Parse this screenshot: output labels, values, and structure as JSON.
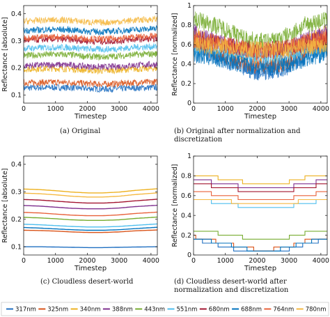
{
  "chart_data": [
    {
      "id": "a",
      "type": "line",
      "caption": "(a) Original",
      "xlabel": "Timestep",
      "ylabel": "Reflectance [absolute]",
      "xlim": [
        0,
        4200
      ],
      "ylim": [
        0.07,
        0.43
      ],
      "xticks": [
        0,
        1000,
        2000,
        3000,
        4000
      ],
      "yticks": [
        0.1,
        0.2,
        0.3,
        0.4
      ],
      "ytick_labels": [
        "0.1",
        "0.2",
        "0.3",
        "0.4"
      ],
      "style": "noisy",
      "x": [
        0,
        500,
        1000,
        1500,
        2000,
        2500,
        3000,
        3500,
        4200
      ],
      "series": [
        {
          "name": "317nm",
          "values": [
            0.126,
            0.127,
            0.128,
            0.127,
            0.124,
            0.122,
            0.123,
            0.126,
            0.128
          ]
        },
        {
          "name": "325nm",
          "values": [
            0.145,
            0.146,
            0.147,
            0.146,
            0.142,
            0.14,
            0.142,
            0.146,
            0.148
          ]
        },
        {
          "name": "340nm",
          "values": [
            0.195,
            0.197,
            0.198,
            0.196,
            0.191,
            0.189,
            0.192,
            0.196,
            0.198
          ]
        },
        {
          "name": "388nm",
          "values": [
            0.208,
            0.21,
            0.212,
            0.21,
            0.205,
            0.203,
            0.206,
            0.21,
            0.213
          ]
        },
        {
          "name": "443nm",
          "values": [
            0.245,
            0.248,
            0.25,
            0.248,
            0.242,
            0.24,
            0.244,
            0.249,
            0.252
          ]
        },
        {
          "name": "551nm",
          "values": [
            0.272,
            0.274,
            0.276,
            0.275,
            0.27,
            0.268,
            0.271,
            0.276,
            0.279
          ]
        },
        {
          "name": "680nm",
          "values": [
            0.302,
            0.304,
            0.306,
            0.304,
            0.299,
            0.297,
            0.3,
            0.305,
            0.308
          ]
        },
        {
          "name": "688nm",
          "values": [
            0.338,
            0.34,
            0.342,
            0.34,
            0.335,
            0.333,
            0.337,
            0.341,
            0.345
          ]
        },
        {
          "name": "764nm",
          "values": [
            0.311,
            0.313,
            0.315,
            0.313,
            0.308,
            0.306,
            0.309,
            0.314,
            0.317
          ]
        },
        {
          "name": "780nm",
          "values": [
            0.372,
            0.375,
            0.377,
            0.375,
            0.369,
            0.367,
            0.371,
            0.376,
            0.38
          ]
        }
      ]
    },
    {
      "id": "b",
      "type": "line",
      "caption": "(b) Original after normalization and discretization",
      "xlabel": "Timestep",
      "ylabel": "Reflectance [normalized]",
      "xlim": [
        0,
        4200
      ],
      "ylim": [
        0.0,
        1.0
      ],
      "xticks": [
        0,
        1000,
        2000,
        3000,
        4000
      ],
      "yticks": [
        0,
        0.2,
        0.4,
        0.6,
        0.8,
        1
      ],
      "ytick_labels": [
        "0",
        "0.2",
        "0.4",
        "0.6",
        "0.8",
        "1"
      ],
      "style": "noisy-wide",
      "x": [
        0,
        500,
        1000,
        1500,
        2000,
        2500,
        3000,
        3500,
        4200
      ],
      "series": [
        {
          "name": "317nm",
          "values": [
            0.6,
            0.52,
            0.44,
            0.36,
            0.32,
            0.33,
            0.38,
            0.48,
            0.62
          ]
        },
        {
          "name": "325nm",
          "values": [
            0.62,
            0.55,
            0.48,
            0.42,
            0.38,
            0.39,
            0.43,
            0.52,
            0.63
          ]
        },
        {
          "name": "340nm",
          "values": [
            0.7,
            0.64,
            0.58,
            0.52,
            0.49,
            0.5,
            0.54,
            0.62,
            0.72
          ]
        },
        {
          "name": "388nm",
          "values": [
            0.72,
            0.66,
            0.6,
            0.55,
            0.52,
            0.53,
            0.56,
            0.64,
            0.74
          ]
        },
        {
          "name": "443nm",
          "values": [
            0.86,
            0.82,
            0.76,
            0.68,
            0.63,
            0.64,
            0.7,
            0.8,
            0.86
          ]
        },
        {
          "name": "551nm",
          "values": [
            0.55,
            0.54,
            0.52,
            0.5,
            0.48,
            0.48,
            0.5,
            0.53,
            0.56
          ]
        },
        {
          "name": "680nm",
          "values": [
            0.64,
            0.62,
            0.6,
            0.57,
            0.55,
            0.55,
            0.57,
            0.61,
            0.65
          ]
        },
        {
          "name": "688nm",
          "values": [
            0.5,
            0.47,
            0.44,
            0.4,
            0.37,
            0.37,
            0.4,
            0.45,
            0.52
          ]
        },
        {
          "name": "764nm",
          "values": [
            0.66,
            0.63,
            0.6,
            0.56,
            0.53,
            0.54,
            0.57,
            0.62,
            0.67
          ]
        },
        {
          "name": "780nm",
          "values": [
            0.6,
            0.59,
            0.58,
            0.56,
            0.55,
            0.55,
            0.56,
            0.58,
            0.6
          ]
        }
      ]
    },
    {
      "id": "c",
      "type": "line",
      "caption": "(c) Cloudless desert-world",
      "xlabel": "Timestep",
      "ylabel": "Reflectance [absolute]",
      "xlim": [
        0,
        4200
      ],
      "ylim": [
        0.07,
        0.43
      ],
      "xticks": [
        0,
        1000,
        2000,
        3000,
        4000
      ],
      "yticks": [
        0.1,
        0.2,
        0.3,
        0.4
      ],
      "ytick_labels": [
        "0.1",
        "0.2",
        "0.3",
        "0.4"
      ],
      "style": "smooth",
      "x": [
        0,
        500,
        1000,
        1500,
        2000,
        2500,
        3000,
        3500,
        4200
      ],
      "series": [
        {
          "name": "317nm",
          "values": [
            0.1,
            0.1,
            0.099,
            0.098,
            0.097,
            0.097,
            0.098,
            0.099,
            0.1
          ]
        },
        {
          "name": "325nm",
          "values": [
            0.16,
            0.159,
            0.157,
            0.154,
            0.152,
            0.152,
            0.154,
            0.158,
            0.161
          ]
        },
        {
          "name": "340nm",
          "values": [
            0.31,
            0.308,
            0.304,
            0.299,
            0.296,
            0.296,
            0.299,
            0.305,
            0.311
          ]
        },
        {
          "name": "388nm",
          "values": [
            0.25,
            0.248,
            0.244,
            0.24,
            0.238,
            0.238,
            0.241,
            0.246,
            0.251
          ]
        },
        {
          "name": "443nm",
          "values": [
            0.207,
            0.205,
            0.202,
            0.198,
            0.196,
            0.196,
            0.198,
            0.203,
            0.208
          ]
        },
        {
          "name": "551nm",
          "values": [
            0.182,
            0.18,
            0.177,
            0.174,
            0.172,
            0.172,
            0.174,
            0.178,
            0.183
          ]
        },
        {
          "name": "680nm",
          "values": [
            0.272,
            0.27,
            0.266,
            0.262,
            0.259,
            0.259,
            0.262,
            0.267,
            0.273
          ]
        },
        {
          "name": "688nm",
          "values": [
            0.17,
            0.168,
            0.165,
            0.162,
            0.16,
            0.16,
            0.162,
            0.166,
            0.171
          ]
        },
        {
          "name": "764nm",
          "values": [
            0.225,
            0.223,
            0.219,
            0.215,
            0.213,
            0.213,
            0.216,
            0.221,
            0.226
          ]
        },
        {
          "name": "780nm",
          "values": [
            0.295,
            0.293,
            0.289,
            0.284,
            0.281,
            0.281,
            0.284,
            0.29,
            0.296
          ]
        }
      ]
    },
    {
      "id": "d",
      "type": "line",
      "caption": "(d) Cloudless desert-world after normalization and discretization",
      "xlabel": "Timestep",
      "ylabel": "Reflectance [normalized]",
      "xlim": [
        0,
        4200
      ],
      "ylim": [
        0.0,
        1.0
      ],
      "xticks": [
        0,
        1000,
        2000,
        3000,
        4000
      ],
      "yticks": [
        0,
        0.2,
        0.4,
        0.6,
        0.8,
        1
      ],
      "ytick_labels": [
        "0",
        "0.2",
        "0.4",
        "0.6",
        "0.8",
        "1"
      ],
      "style": "step",
      "x": [
        0,
        500,
        1000,
        1500,
        2000,
        2500,
        3000,
        3500,
        4200
      ],
      "series": [
        {
          "name": "317nm",
          "values": [
            0.16,
            0.12,
            0.08,
            0.04,
            0.02,
            0.03,
            0.06,
            0.11,
            0.16
          ]
        },
        {
          "name": "325nm",
          "values": [
            0.18,
            0.15,
            0.12,
            0.08,
            0.05,
            0.06,
            0.09,
            0.14,
            0.18
          ]
        },
        {
          "name": "340nm",
          "values": [
            0.8,
            0.79,
            0.77,
            0.74,
            0.72,
            0.72,
            0.74,
            0.78,
            0.8
          ]
        },
        {
          "name": "388nm",
          "values": [
            0.75,
            0.74,
            0.72,
            0.69,
            0.67,
            0.67,
            0.69,
            0.73,
            0.75
          ]
        },
        {
          "name": "443nm",
          "values": [
            0.25,
            0.23,
            0.21,
            0.18,
            0.16,
            0.16,
            0.18,
            0.22,
            0.25
          ]
        },
        {
          "name": "551nm",
          "values": [
            0.55,
            0.54,
            0.52,
            0.49,
            0.47,
            0.47,
            0.49,
            0.53,
            0.55
          ]
        },
        {
          "name": "680nm",
          "values": [
            0.71,
            0.7,
            0.68,
            0.65,
            0.63,
            0.63,
            0.65,
            0.69,
            0.71
          ]
        },
        {
          "name": "688nm",
          "values": [
            0.17,
            0.14,
            0.11,
            0.07,
            0.04,
            0.05,
            0.08,
            0.13,
            0.17
          ]
        },
        {
          "name": "764nm",
          "values": [
            0.63,
            0.62,
            0.6,
            0.57,
            0.55,
            0.55,
            0.57,
            0.61,
            0.63
          ]
        },
        {
          "name": "780nm",
          "values": [
            0.58,
            0.57,
            0.55,
            0.52,
            0.5,
            0.5,
            0.52,
            0.56,
            0.58
          ]
        }
      ]
    }
  ],
  "legend": {
    "entries": [
      {
        "name": "317nm",
        "color": "#1f6fc1"
      },
      {
        "name": "325nm",
        "color": "#d95319"
      },
      {
        "name": "340nm",
        "color": "#edb120"
      },
      {
        "name": "388nm",
        "color": "#7e2f8e"
      },
      {
        "name": "443nm",
        "color": "#77ac30"
      },
      {
        "name": "551nm",
        "color": "#4dbeee"
      },
      {
        "name": "680nm",
        "color": "#a2142f"
      },
      {
        "name": "688nm",
        "color": "#0072bd"
      },
      {
        "name": "764nm",
        "color": "#e8613a"
      },
      {
        "name": "780nm",
        "color": "#f5b942"
      }
    ]
  }
}
